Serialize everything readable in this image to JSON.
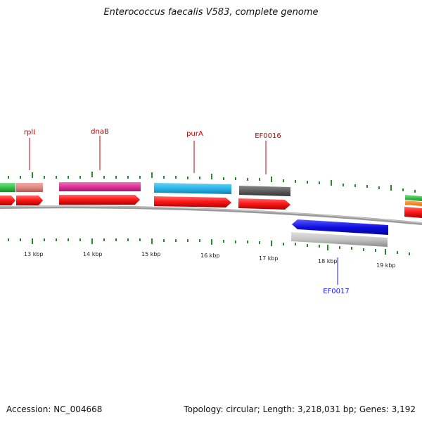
{
  "title": "Enterococcus faecalis V583, complete genome",
  "footer": {
    "accession": "Accession: NC_004668",
    "summary": "Topology: circular; Length: 3,218,031 bp; Genes: 3,192"
  },
  "gene_labels": [
    {
      "name": "rplI",
      "color": "#c00000"
    },
    {
      "name": "dnaB",
      "color": "#c00000"
    },
    {
      "name": "purA",
      "color": "#c00000"
    },
    {
      "name": "EF0016",
      "color": "#c00000"
    },
    {
      "name": "EF0017",
      "color": "#1a1aff"
    }
  ],
  "scale_labels": [
    "13 kbp",
    "14 kbp",
    "15 kbp",
    "16 kbp",
    "17 kbp",
    "18 kbp",
    "19 kbp"
  ],
  "colors": {
    "rplI": "#e08a84",
    "dnaB": "#e0339a",
    "purA": "#27b4e8",
    "EF0016": "#5f5f5f",
    "EF0017": "#1010e0",
    "cds_forward": "#ff1a1a",
    "backbone": "#8a8a8a",
    "ticks": "#2a8a2a",
    "gene_left_green": "#39c24a"
  }
}
